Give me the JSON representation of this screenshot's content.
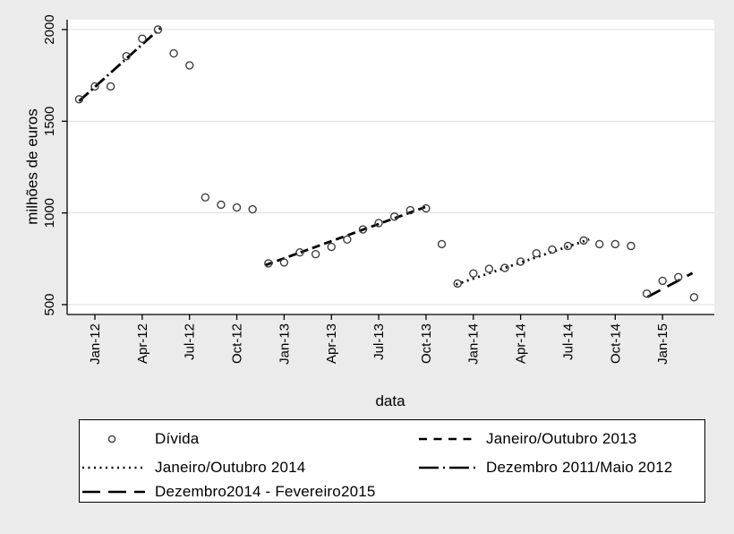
{
  "figure": {
    "background": "#ebebeb",
    "plot_bg": "#ffffff",
    "grid_color": "#dcdcdc",
    "axis_color": "#000000",
    "line_color": "#000000",
    "marker_color": "#3f3f3f"
  },
  "chart_data": {
    "type": "scatter",
    "title": "",
    "xlabel": "data",
    "ylabel": "milhões de euros",
    "grid": true,
    "legend_position": "bottom",
    "ylim": [
      446,
      2054
    ],
    "y_ticks": [
      500,
      1000,
      1500,
      2000
    ],
    "x_ticks": [
      {
        "label": "Jan-12",
        "m": 1
      },
      {
        "label": "Apr-12",
        "m": 4
      },
      {
        "label": "Jul-12",
        "m": 7
      },
      {
        "label": "Oct-12",
        "m": 10
      },
      {
        "label": "Jan-13",
        "m": 13
      },
      {
        "label": "Apr-13",
        "m": 16
      },
      {
        "label": "Jul-13",
        "m": 19
      },
      {
        "label": "Oct-13",
        "m": 22
      },
      {
        "label": "Jan-14",
        "m": 25
      },
      {
        "label": "Apr-14",
        "m": 28
      },
      {
        "label": "Jul-14",
        "m": 31
      },
      {
        "label": "Oct-14",
        "m": 34
      },
      {
        "label": "Jan-15",
        "m": 37
      }
    ],
    "x_months": [
      "Dec-11",
      "Jan-12",
      "Feb-12",
      "Mar-12",
      "Apr-12",
      "May-12",
      "Jun-12",
      "Jul-12",
      "Aug-12",
      "Sep-12",
      "Oct-12",
      "Nov-12",
      "Dec-12",
      "Jan-13",
      "Feb-13",
      "Mar-13",
      "Apr-13",
      "May-13",
      "Jun-13",
      "Jul-13",
      "Aug-13",
      "Sep-13",
      "Oct-13",
      "Nov-13",
      "Dec-13",
      "Jan-14",
      "Feb-14",
      "Mar-14",
      "Apr-14",
      "May-14",
      "Jun-14",
      "Jul-14",
      "Aug-14",
      "Sep-14",
      "Oct-14",
      "Nov-14",
      "Dec-14",
      "Jan-15",
      "Feb-15",
      "Mar-15"
    ],
    "scatter": {
      "name": "Dívida",
      "values": [
        1620,
        1690,
        1690,
        1855,
        1950,
        2000,
        1870,
        1805,
        1085,
        1045,
        1030,
        1020,
        725,
        730,
        785,
        775,
        815,
        855,
        910,
        945,
        980,
        1015,
        1025,
        830,
        615,
        670,
        695,
        700,
        735,
        780,
        800,
        820,
        850,
        830,
        830,
        820,
        560,
        630,
        650,
        540
      ]
    },
    "trend_lines": [
      {
        "name": "Dezembro 2011/Maio 2012",
        "style": "dashdot",
        "from": {
          "m": 0,
          "v": 1610
        },
        "to": {
          "m": 5.15,
          "v": 2008
        }
      },
      {
        "name": "Janeiro/Outubro 2013",
        "style": "dashed",
        "from": {
          "m": 11.8,
          "v": 715
        },
        "to": {
          "m": 21.95,
          "v": 1032
        }
      },
      {
        "name": "Janeiro/Outubro 2014",
        "style": "dotted",
        "from": {
          "m": 23.9,
          "v": 610
        },
        "to": {
          "m": 32.35,
          "v": 856
        }
      },
      {
        "name": "Dezembro2014 - Fevereiro2015",
        "style": "longdash",
        "from": {
          "m": 36.05,
          "v": 542
        },
        "to": {
          "m": 38.9,
          "v": 672
        }
      }
    ]
  },
  "legend": {
    "entries": [
      {
        "label": "Dívida",
        "symbol": "circle"
      },
      {
        "label": "Janeiro/Outubro 2013",
        "symbol": "dashed"
      },
      {
        "label": "Janeiro/Outubro 2014",
        "symbol": "dotted"
      },
      {
        "label": "Dezembro 2011/Maio 2012",
        "symbol": "dashdot"
      },
      {
        "label": "Dezembro2014 - Fevereiro2015",
        "symbol": "longdash"
      }
    ]
  }
}
